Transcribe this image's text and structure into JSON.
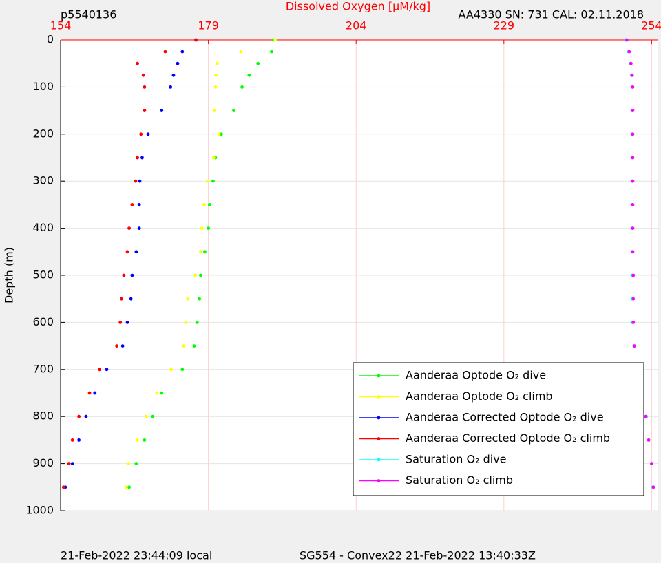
{
  "chart_data": {
    "type": "scatter",
    "title": "Dissolved Oxygen [μM/kg]",
    "title_color": "#ff0000",
    "left_note": "p5540136",
    "right_note": "AA4330   SN: 731   CAL: 02.11.2018",
    "ylabel": "Depth (m)",
    "footer_left": "21-Feb-2022 23:44:09 local",
    "footer_right": "SG554 - Convex22 21-Feb-2022 13:40:33Z",
    "xlim": [
      154,
      255
    ],
    "xticks": [
      154,
      179,
      204,
      229,
      254
    ],
    "ylim": [
      0,
      1000
    ],
    "yticks": [
      0,
      100,
      200,
      300,
      400,
      500,
      600,
      700,
      800,
      900,
      1000
    ],
    "y_reversed": true,
    "grid": true,
    "legend": "lower right",
    "y": [
      0,
      25,
      50,
      75,
      100,
      150,
      200,
      250,
      300,
      350,
      400,
      450,
      500,
      550,
      600,
      650,
      700,
      750,
      800,
      850,
      900,
      950
    ],
    "series": [
      {
        "name": "Aanderaa Optode O₂ dive",
        "color": "#00ff00",
        "values": [
          190.0,
          189.7,
          187.4,
          185.9,
          184.7,
          183.3,
          181.2,
          180.2,
          179.8,
          179.2,
          179.0,
          178.4,
          177.7,
          177.5,
          177.1,
          176.6,
          174.6,
          171.1,
          169.6,
          168.2,
          166.8,
          165.6
        ]
      },
      {
        "name": "Aanderaa Optode O₂ climb",
        "color": "#ffff00",
        "values": [
          190.3,
          184.5,
          180.5,
          180.3,
          180.2,
          180.0,
          180.8,
          179.9,
          178.9,
          178.3,
          177.9,
          177.7,
          176.8,
          175.5,
          175.2,
          174.8,
          172.7,
          170.3,
          168.5,
          167.0,
          165.5,
          165.1
        ]
      },
      {
        "name": "Aanderaa Corrected Optode O₂ dive",
        "color": "#0000ff",
        "values": [
          176.9,
          174.6,
          173.8,
          173.1,
          172.6,
          171.1,
          168.8,
          167.8,
          167.4,
          167.3,
          167.3,
          166.8,
          166.1,
          165.9,
          165.3,
          164.5,
          161.8,
          159.8,
          158.3,
          157.1,
          156.0,
          154.8
        ]
      },
      {
        "name": "Aanderaa Corrected Optode O₂ climb",
        "color": "#ff0000",
        "values": [
          176.9,
          171.7,
          167.0,
          168.0,
          168.2,
          168.2,
          167.6,
          167.0,
          166.7,
          166.1,
          165.6,
          165.3,
          164.7,
          164.3,
          164.1,
          163.5,
          160.6,
          158.9,
          157.1,
          156.0,
          155.4,
          154.5
        ]
      },
      {
        "name": "Saturation O₂ dive",
        "color": "#00ffff",
        "values": [
          249.6,
          250.1,
          250.4,
          250.6,
          250.7,
          250.7,
          250.7,
          250.7,
          250.7,
          250.7,
          250.7,
          250.7,
          250.7,
          250.7,
          250.7,
          251.0,
          251.7,
          252.5,
          253.1,
          253.5,
          254.0,
          254.2
        ]
      },
      {
        "name": "Saturation O₂ climb",
        "color": "#ff00ff",
        "values": [
          249.8,
          250.2,
          250.5,
          250.7,
          250.8,
          250.8,
          250.8,
          250.8,
          250.8,
          250.8,
          250.8,
          250.8,
          250.9,
          250.9,
          250.9,
          251.1,
          251.6,
          252.3,
          253.0,
          253.5,
          254.0,
          254.3
        ]
      }
    ]
  }
}
